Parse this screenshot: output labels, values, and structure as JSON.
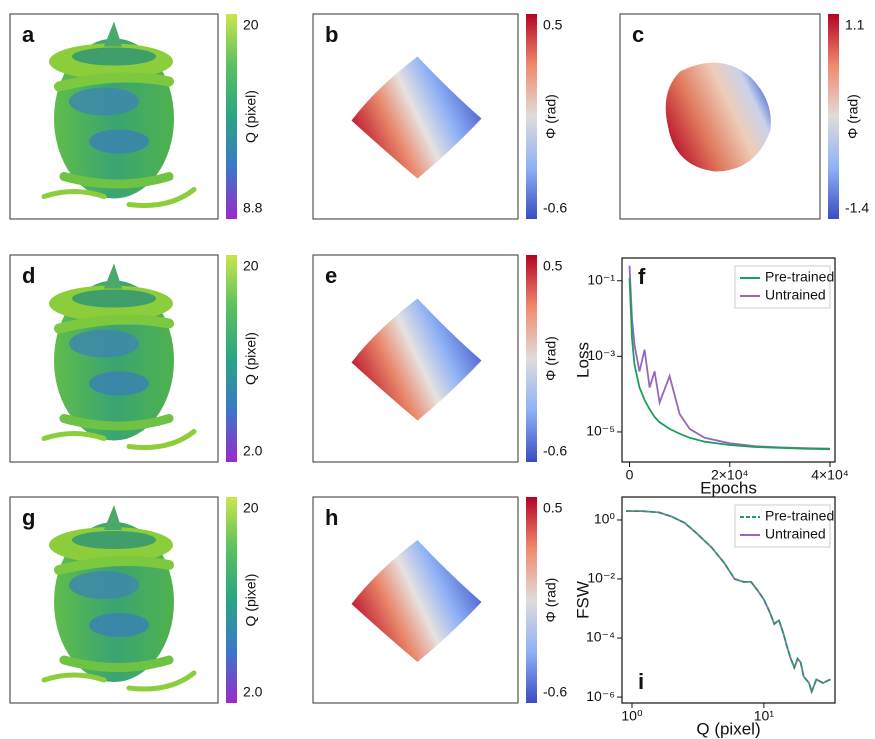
{
  "panels": [
    {
      "letter": "a",
      "colorbar": {
        "label": "Q (pixel)",
        "max": 20,
        "min": 8.8,
        "colors": [
          "#c8e64a",
          "#5cc060",
          "#2aa583",
          "#3a78c9",
          "#9a2bc8"
        ]
      }
    },
    {
      "letter": "b",
      "colorbar": {
        "label": "Φ (rad)",
        "max": 0.5,
        "min": -0.6,
        "colors": [
          "#b40426",
          "#f08a6c",
          "#e0dcda",
          "#8fb1f6",
          "#3b4cc0"
        ]
      }
    },
    {
      "letter": "c",
      "colorbar": {
        "label": "Φ (rad)",
        "max": 1.1,
        "min": -1.4,
        "colors": [
          "#b40426",
          "#f08a6c",
          "#e0dcda",
          "#8fb1f6",
          "#3b4cc0"
        ]
      }
    },
    {
      "letter": "d",
      "colorbar": {
        "label": "Q (pixel)",
        "max": 20,
        "min": {
          "value": 2,
          "label": "2.0"
        },
        "colors": [
          "#c8e64a",
          "#5cc060",
          "#2aa583",
          "#3a78c9",
          "#9a2bc8"
        ]
      }
    },
    {
      "letter": "e",
      "colorbar": {
        "label": "Φ (rad)",
        "max": 0.5,
        "min": -0.6,
        "colors": [
          "#b40426",
          "#f08a6c",
          "#e0dcda",
          "#8fb1f6",
          "#3b4cc0"
        ]
      }
    },
    {
      "letter": "g",
      "colorbar": {
        "label": "Q (pixel)",
        "max": 20,
        "min": {
          "value": 2,
          "label": "2.0"
        },
        "colors": [
          "#c8e64a",
          "#5cc060",
          "#2aa583",
          "#3a78c9",
          "#9a2bc8"
        ]
      }
    },
    {
      "letter": "h",
      "colorbar": {
        "label": "Φ (rad)",
        "max": 0.5,
        "min": -0.6,
        "colors": [
          "#b40426",
          "#f08a6c",
          "#e0dcda",
          "#8fb1f6",
          "#3b4cc0"
        ]
      }
    }
  ],
  "chart_data": [
    {
      "type": "line",
      "panel": "f",
      "x_label": "Epochs",
      "y_label": "Loss",
      "y_log": true,
      "legend": "upper right",
      "x": [
        0,
        500,
        1000,
        2000,
        3000,
        4000,
        5000,
        6000,
        8000,
        10000,
        12000,
        15000,
        20000,
        25000,
        30000,
        35000,
        40000
      ],
      "series": [
        {
          "name": "Pre-trained",
          "color": "#1f9e5a",
          "dash": false,
          "values": [
            0.12,
            0.003,
            0.0006,
            0.00015,
            7e-05,
            4e-05,
            2.5e-05,
            1.8e-05,
            1.2e-05,
            9e-06,
            7e-06,
            5.5e-06,
            4.5e-06,
            4e-06,
            3.8e-06,
            3.6e-06,
            3.5e-06
          ]
        },
        {
          "name": "Untrained",
          "color": "#9467bd",
          "dash": false,
          "values": [
            0.25,
            0.01,
            0.002,
            0.0004,
            0.0015,
            0.00015,
            0.0004,
            6e-05,
            0.0003,
            3e-05,
            1.2e-05,
            7e-06,
            5e-06,
            4.2e-06,
            3.9e-06,
            3.7e-06,
            3.6e-06
          ]
        }
      ],
      "xlim": [
        -1500,
        41000
      ],
      "ylim": [
        1.6e-06,
        0.4
      ],
      "xticks": [
        0,
        {
          "value": 20000,
          "label": "2×10⁴"
        },
        {
          "value": 40000,
          "label": "4×10⁴"
        }
      ],
      "yticks": [
        {
          "value": 0.1,
          "label": "10⁻¹"
        },
        {
          "value": 0.001,
          "label": "10⁻³"
        },
        {
          "value": 1e-05,
          "label": "10⁻⁵"
        }
      ]
    },
    {
      "type": "line",
      "panel": "i",
      "x_label": "Q (pixel)",
      "y_label": "FSW",
      "x_log": true,
      "y_log": true,
      "legend": "upper right",
      "x": [
        0.9,
        1.2,
        1.6,
        2,
        2.5,
        3,
        4,
        5,
        6,
        7,
        8,
        9,
        10,
        11,
        12,
        13,
        14,
        15,
        16,
        17,
        18,
        19,
        20,
        22,
        23,
        25,
        28,
        32
      ],
      "series": [
        {
          "name": "Pre-trained",
          "color": "#1f9e5a",
          "dash": true,
          "values": [
            2,
            2,
            1.8,
            1.3,
            0.8,
            0.4,
            0.12,
            0.035,
            0.01,
            0.008,
            0.008,
            0.004,
            0.002,
            0.0008,
            0.0003,
            0.0004,
            0.00015,
            5e-05,
            2e-05,
            1e-05,
            2e-05,
            1.5e-05,
            5e-06,
            3e-06,
            1.5e-06,
            4e-06,
            3e-06,
            4e-06
          ]
        },
        {
          "name": "Untrained",
          "color": "#9467bd",
          "dash": false,
          "values": [
            2,
            2,
            1.8,
            1.3,
            0.8,
            0.4,
            0.12,
            0.035,
            0.01,
            0.008,
            0.008,
            0.004,
            0.002,
            0.0008,
            0.0003,
            0.0004,
            0.00015,
            5e-05,
            2e-05,
            1e-05,
            2e-05,
            1.5e-05,
            5e-06,
            3e-06,
            1.5e-06,
            4e-06,
            3e-06,
            4e-06
          ]
        }
      ],
      "xlim": [
        0.84,
        34.6
      ],
      "ylim": [
        6.3e-07,
        6
      ],
      "xticks": [
        {
          "value": 1,
          "label": "10⁰"
        },
        {
          "value": 10,
          "label": "10¹"
        }
      ],
      "yticks": [
        {
          "value": 1,
          "label": "10⁰"
        },
        {
          "value": 0.01,
          "label": "10⁻²"
        },
        {
          "value": 0.0001,
          "label": "10⁻⁴"
        },
        {
          "value": 1e-06,
          "label": "10⁻⁶"
        }
      ]
    }
  ]
}
